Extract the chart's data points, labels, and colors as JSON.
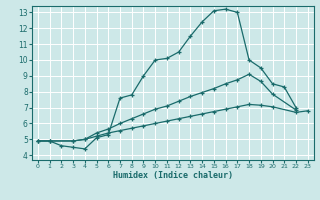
{
  "xlabel": "Humidex (Indice chaleur)",
  "bg_color": "#cde8e8",
  "grid_color": "#b0d4d4",
  "line_color": "#1a6b6b",
  "xlim": [
    -0.5,
    23.5
  ],
  "ylim": [
    3.7,
    13.4
  ],
  "xticks": [
    0,
    1,
    2,
    3,
    4,
    5,
    6,
    7,
    8,
    9,
    10,
    11,
    12,
    13,
    14,
    15,
    16,
    17,
    18,
    19,
    20,
    21,
    22,
    23
  ],
  "yticks": [
    4,
    5,
    6,
    7,
    8,
    9,
    10,
    11,
    12,
    13
  ],
  "curve1_x": [
    0,
    1,
    2,
    3,
    4,
    5,
    6,
    7,
    8,
    9,
    10,
    11,
    12,
    13,
    14,
    15,
    16,
    17,
    18,
    19,
    20,
    21,
    22
  ],
  "curve1_y": [
    4.9,
    4.9,
    4.6,
    4.5,
    4.4,
    5.1,
    5.3,
    7.6,
    7.8,
    9.0,
    10.0,
    10.1,
    10.5,
    11.5,
    12.4,
    13.1,
    13.2,
    13.0,
    10.0,
    9.5,
    8.5,
    8.3,
    7.0
  ],
  "curve2_x": [
    0,
    1,
    3,
    4,
    5,
    6,
    7,
    8,
    9,
    10,
    11,
    12,
    13,
    14,
    15,
    16,
    17,
    18,
    19,
    20,
    22
  ],
  "curve2_y": [
    4.9,
    4.9,
    4.9,
    5.0,
    5.4,
    5.65,
    6.0,
    6.3,
    6.6,
    6.9,
    7.1,
    7.4,
    7.7,
    7.95,
    8.2,
    8.5,
    8.75,
    9.1,
    8.65,
    7.85,
    6.85
  ],
  "curve3_x": [
    0,
    1,
    3,
    4,
    5,
    6,
    7,
    8,
    9,
    10,
    11,
    12,
    13,
    14,
    15,
    16,
    17,
    18,
    19,
    20,
    22,
    23
  ],
  "curve3_y": [
    4.9,
    4.9,
    4.9,
    5.0,
    5.2,
    5.4,
    5.55,
    5.7,
    5.85,
    6.0,
    6.15,
    6.3,
    6.45,
    6.6,
    6.75,
    6.9,
    7.05,
    7.2,
    7.15,
    7.05,
    6.7,
    6.8
  ]
}
